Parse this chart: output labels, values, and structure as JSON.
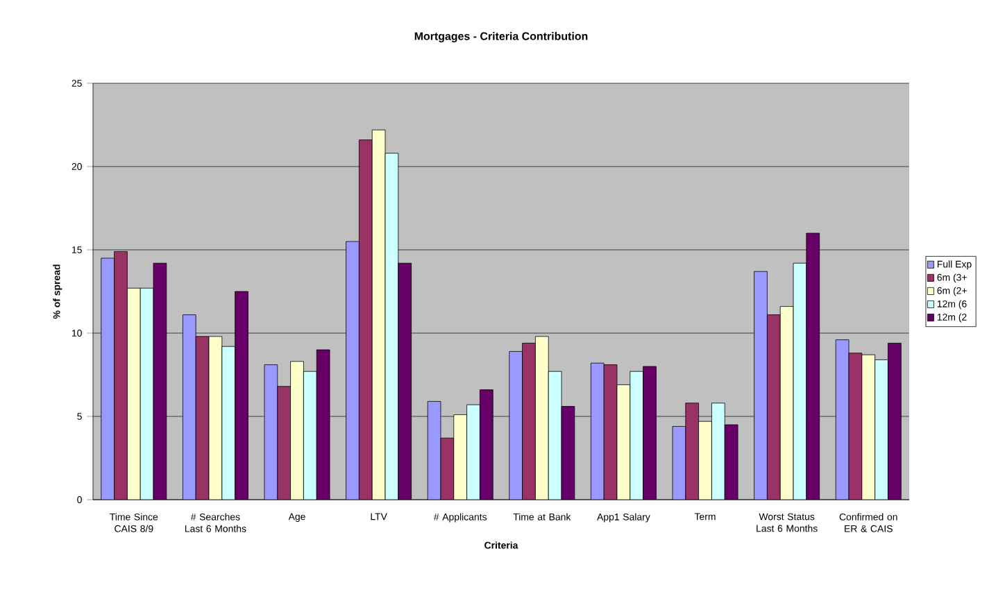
{
  "chart_data": {
    "type": "bar",
    "title": "Mortgages - Criteria Contribution",
    "xlabel": "Criteria",
    "ylabel": "% of spread",
    "categories": [
      "Time Since CAIS 8/9",
      "# Searches Last 6 Months",
      "Age",
      "LTV",
      "# Applicants",
      "Time at Bank",
      "App1 Salary",
      "Term",
      "Worst Status Last 6 Months",
      "Confirmed on ER & CAIS"
    ],
    "series": [
      {
        "name": "Full Exp",
        "color": "#9999ff",
        "values": [
          14.5,
          11.1,
          8.1,
          15.5,
          5.9,
          8.9,
          8.2,
          4.4,
          13.7,
          9.6
        ]
      },
      {
        "name": "6m (3+",
        "color": "#993366",
        "values": [
          14.9,
          9.8,
          6.8,
          21.6,
          3.7,
          9.4,
          8.1,
          5.8,
          11.1,
          8.8
        ]
      },
      {
        "name": "6m (2+",
        "color": "#ffffcc",
        "values": [
          12.7,
          9.8,
          8.3,
          22.2,
          5.1,
          9.8,
          6.9,
          4.7,
          11.6,
          8.7
        ]
      },
      {
        "name": "12m (6",
        "color": "#ccffff",
        "values": [
          12.7,
          9.2,
          7.7,
          20.8,
          5.7,
          7.7,
          7.7,
          5.8,
          14.2,
          8.4
        ]
      },
      {
        "name": "12m (2",
        "color": "#660066",
        "values": [
          14.2,
          12.5,
          9.0,
          14.2,
          6.6,
          5.6,
          8.0,
          4.5,
          16.0,
          9.4
        ]
      }
    ],
    "ylim": [
      0,
      25
    ],
    "yticks": [
      0,
      5,
      10,
      15,
      20,
      25
    ],
    "grid": "y",
    "legend": "right"
  }
}
